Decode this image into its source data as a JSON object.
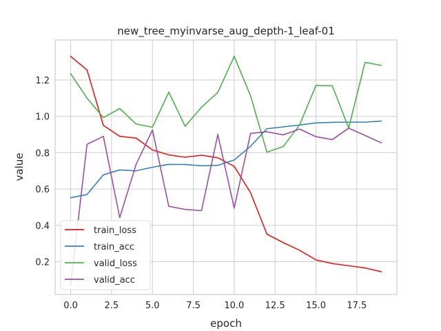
{
  "chart_data": {
    "type": "line",
    "title": "new_tree_myinvarse_aug_depth-1_leaf-01",
    "xlabel": "epoch",
    "ylabel": "value",
    "xlim": [
      -0.95,
      19.95
    ],
    "ylim": [
      0.02,
      1.42
    ],
    "x_ticks": [
      0.0,
      2.5,
      5.0,
      7.5,
      10.0,
      12.5,
      15.0,
      17.5
    ],
    "x_tick_labels": [
      "0.0",
      "2.5",
      "5.0",
      "7.5",
      "10.0",
      "12.5",
      "15.0",
      "17.5"
    ],
    "y_ticks": [
      0.2,
      0.4,
      0.6,
      0.8,
      1.0,
      1.2
    ],
    "y_tick_labels": [
      "0.2",
      "0.4",
      "0.6",
      "0.8",
      "1.0",
      "1.2"
    ],
    "grid": true,
    "legend_position": "lower-left",
    "x": [
      0,
      1,
      2,
      3,
      4,
      5,
      6,
      7,
      8,
      9,
      10,
      11,
      12,
      13,
      14,
      15,
      16,
      17,
      18,
      19
    ],
    "series": [
      {
        "name": "train_loss",
        "color": "#e41a1c",
        "values": [
          1.33,
          1.255,
          0.95,
          0.89,
          0.88,
          0.815,
          0.788,
          0.775,
          0.786,
          0.772,
          0.725,
          0.58,
          0.352,
          0.305,
          0.263,
          0.21,
          0.19,
          0.178,
          0.166,
          0.145
        ]
      },
      {
        "name": "train_acc",
        "color": "#377eb8",
        "values": [
          0.552,
          0.57,
          0.678,
          0.705,
          0.7,
          0.72,
          0.736,
          0.735,
          0.728,
          0.73,
          0.76,
          0.835,
          0.932,
          0.942,
          0.952,
          0.964,
          0.967,
          0.968,
          0.968,
          0.974
        ]
      },
      {
        "name": "valid_loss",
        "color": "#4daf4a",
        "values": [
          1.235,
          1.1,
          0.993,
          1.043,
          0.958,
          0.94,
          1.133,
          0.945,
          1.05,
          1.132,
          1.33,
          1.113,
          0.803,
          0.834,
          0.953,
          1.17,
          1.168,
          0.935,
          1.297,
          1.28
        ]
      },
      {
        "name": "valid_acc",
        "color": "#984ea3",
        "values": [
          0.07,
          0.846,
          0.89,
          0.443,
          0.735,
          0.925,
          0.505,
          0.488,
          0.481,
          0.9,
          0.495,
          0.906,
          0.915,
          0.898,
          0.93,
          0.888,
          0.872,
          0.935,
          0.895,
          0.854
        ]
      }
    ]
  }
}
